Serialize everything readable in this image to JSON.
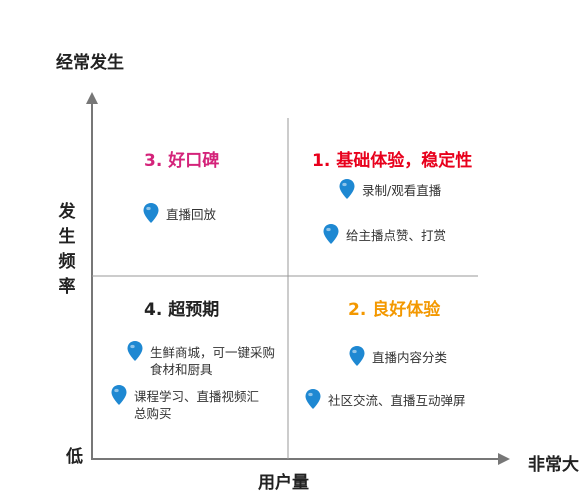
{
  "axes": {
    "y_top_label": "经常发生",
    "y_label": "发生频率",
    "y_bottom_label": "低",
    "x_label": "用户量",
    "x_right_label": "非常大"
  },
  "quadrants": [
    {
      "id": "q1",
      "title": "1. 基础体验，稳定性",
      "color": "#e8001c",
      "items": [
        "录制/观看直播",
        "给主播点赞、打赏"
      ]
    },
    {
      "id": "q2",
      "title": "2. 良好体验",
      "color": "#f39800",
      "items": [
        "直播内容分类",
        "社区交流、直播互动弹屏"
      ]
    },
    {
      "id": "q3",
      "title": "3. 好口碑",
      "color": "#d4237a",
      "items": [
        "直播回放"
      ]
    },
    {
      "id": "q4",
      "title": "4. 超预期",
      "color": "#222222",
      "items": [
        "生鲜商城，可一键采购食材和厨具",
        "课程学习、直播视频汇总购买"
      ]
    }
  ],
  "colors": {
    "pin": "#1e88d2",
    "axis": "#777777",
    "divider": "#999999"
  }
}
